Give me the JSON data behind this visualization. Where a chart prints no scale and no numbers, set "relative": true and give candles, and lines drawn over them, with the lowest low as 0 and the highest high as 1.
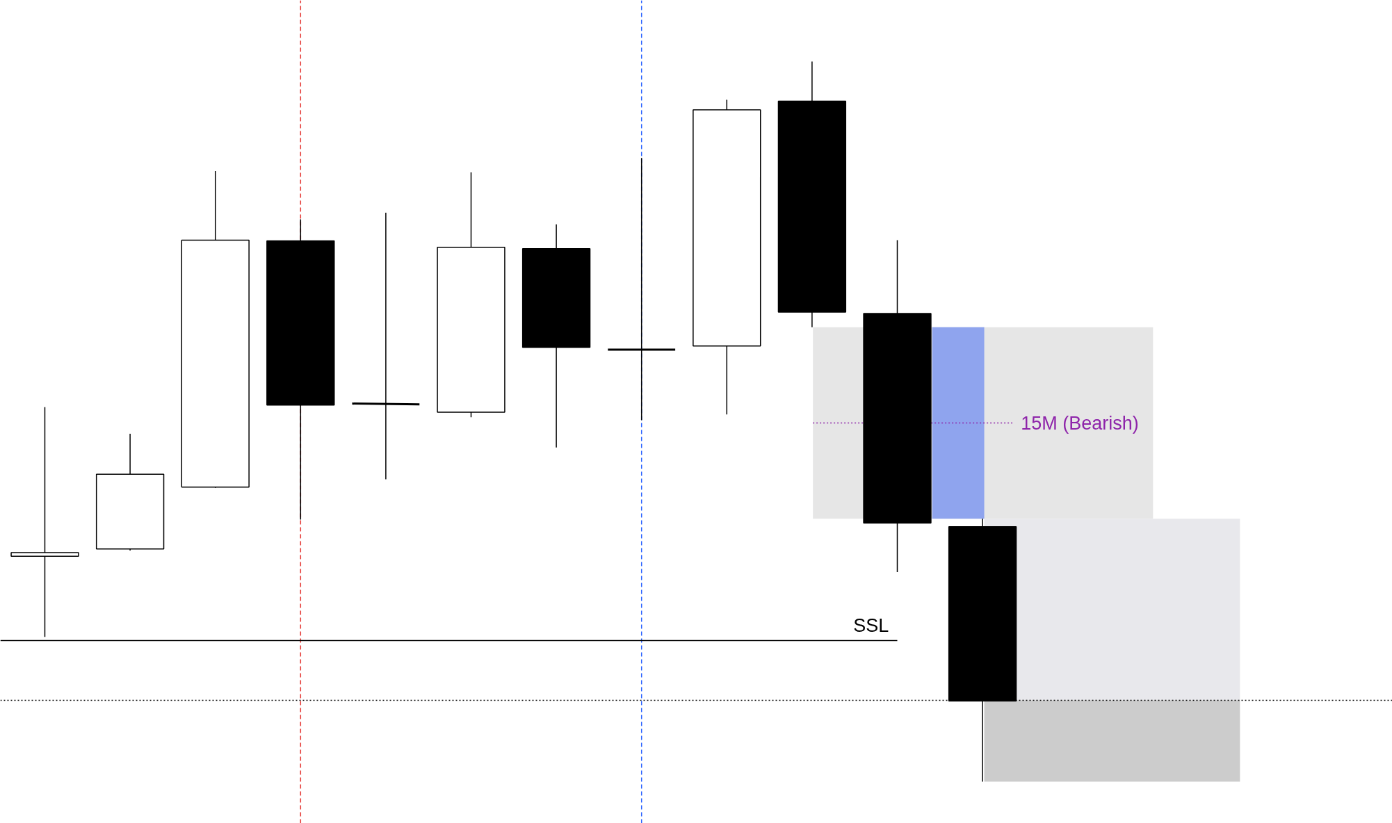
{
  "chart_data": {
    "type": "candlestick",
    "relative": true,
    "categories": [
      null,
      null,
      null,
      null,
      null,
      null,
      null,
      null,
      null,
      null,
      null,
      null
    ],
    "ohlc": [
      [
        0.313,
        0.52,
        0.201,
        0.318
      ],
      [
        0.323,
        0.483,
        0.321,
        0.427
      ],
      [
        0.409,
        0.848,
        0.408,
        0.752
      ],
      [
        0.751,
        0.781,
        0.364,
        0.523
      ],
      [
        0.525,
        0.79,
        0.42,
        0.524
      ],
      [
        0.513,
        0.846,
        0.506,
        0.742
      ],
      [
        0.74,
        0.774,
        0.464,
        0.603
      ],
      [
        0.6,
        0.866,
        0.502,
        0.6
      ],
      [
        0.605,
        0.947,
        0.51,
        0.933
      ],
      [
        0.945,
        1.0,
        0.631,
        0.652
      ],
      [
        0.65,
        0.752,
        0.291,
        0.359
      ],
      [
        0.354,
        0.365,
        0.0,
        0.112
      ]
    ],
    "ref_lines": [
      {
        "axis": "y",
        "value": 0.196,
        "label": "SSL",
        "color": "#000000",
        "line_style": "solid"
      },
      {
        "axis": "y",
        "value": 0.113,
        "label": null,
        "color": "#000000",
        "line_style": "dotted"
      },
      {
        "axis": "y",
        "value": 0.498,
        "label": "15M (Bearish)",
        "color": "#8e24aa",
        "line_style": "dotted"
      }
    ],
    "bands": [
      {
        "axis": "y",
        "from": 0.365,
        "to": 0.631,
        "label": null,
        "color": "#e6e6e6"
      },
      {
        "axis": "y",
        "from": 0.365,
        "to": 0.631,
        "label": null,
        "color": "#8fa4ee"
      },
      {
        "axis": "y",
        "from": 0.113,
        "to": 0.365,
        "label": null,
        "color": "#e8e8ec"
      },
      {
        "axis": "y",
        "from": 0.0,
        "to": 0.113,
        "label": null,
        "color": "#cccccc"
      }
    ],
    "grid": false
  }
}
